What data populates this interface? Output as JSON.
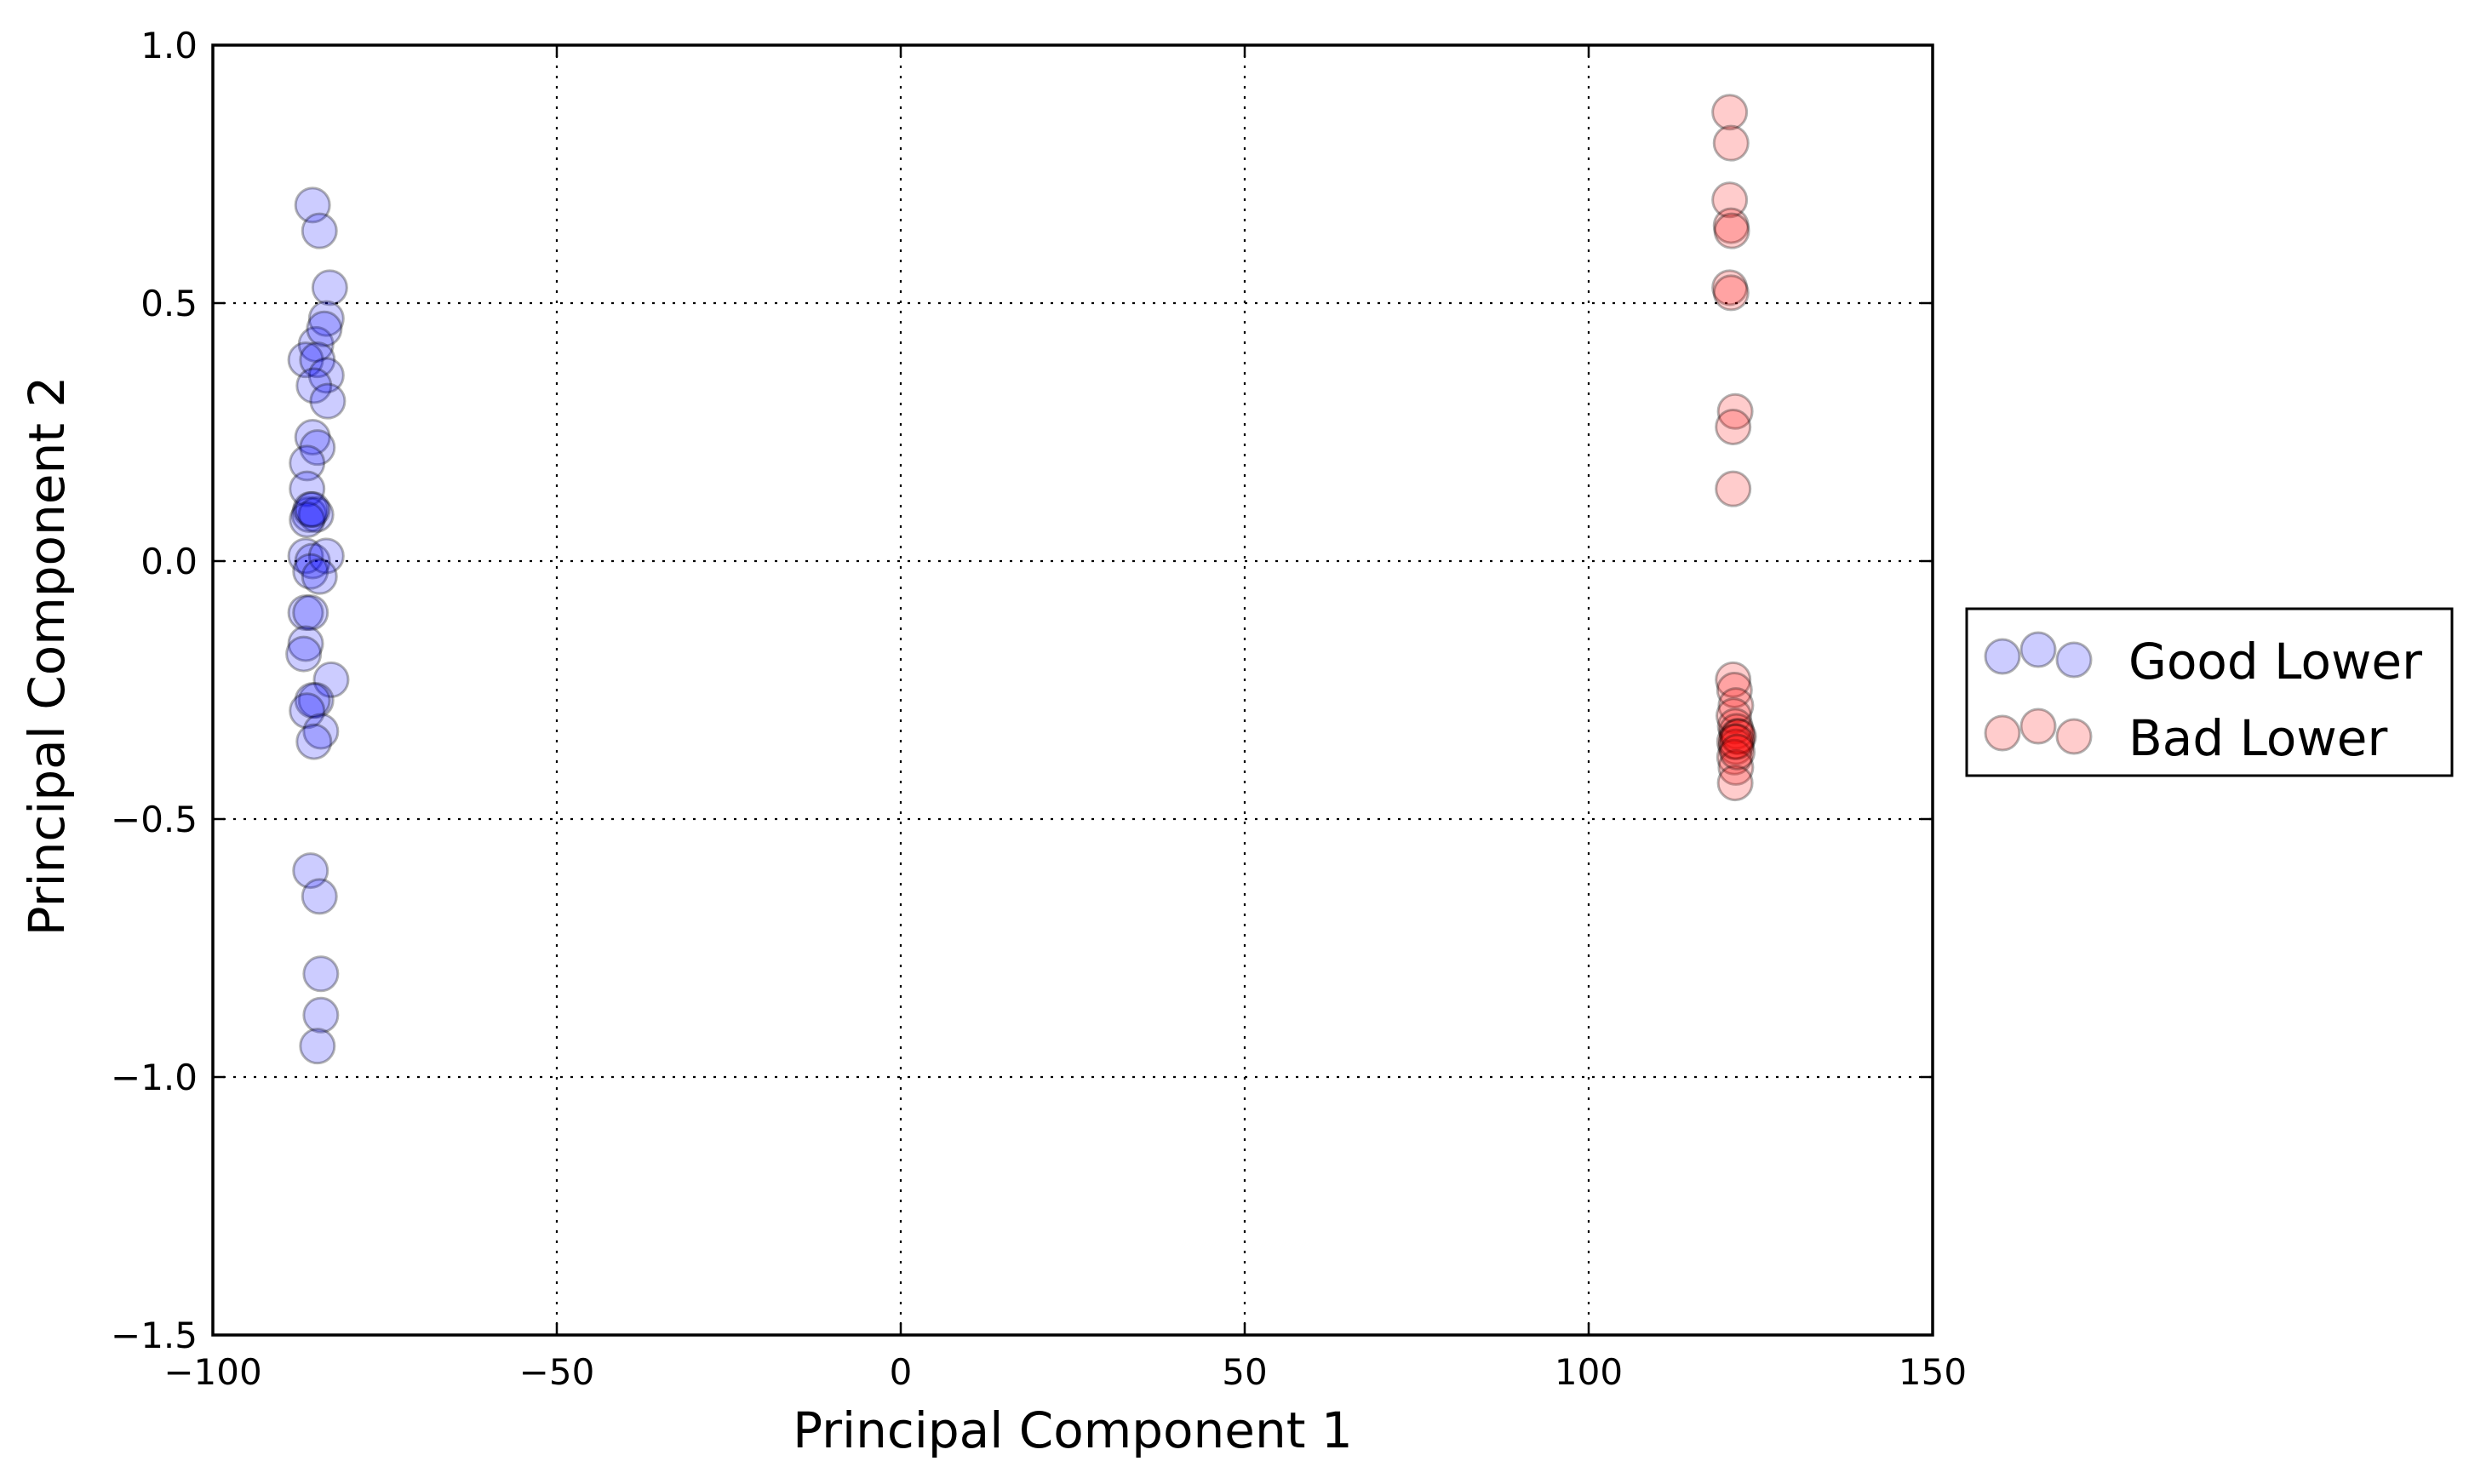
{
  "chart_data": {
    "type": "scatter",
    "title": "",
    "xlabel": "Principal Component 1",
    "ylabel": "Principal Component 2",
    "xlim": [
      -100,
      150
    ],
    "ylim": [
      -1.5,
      1.0
    ],
    "x_ticks": [
      -100,
      -50,
      0,
      50,
      100,
      150
    ],
    "x_tick_labels": [
      "−100",
      "−50",
      "0",
      "50",
      "100",
      "150"
    ],
    "y_ticks": [
      1.0,
      0.5,
      0.0,
      -0.5,
      -1.0,
      -1.5
    ],
    "y_tick_labels": [
      "1.0",
      "0.5",
      "0.0",
      "−0.5",
      "−1.0",
      "−1.5"
    ],
    "grid": true,
    "legend_position": "outside-right",
    "marker_alpha": 0.2,
    "series": [
      {
        "name": "Good Lower",
        "color": "#0000ff",
        "points": [
          [
            -85.5,
            0.69
          ],
          [
            -84.5,
            0.64
          ],
          [
            -83.0,
            0.53
          ],
          [
            -83.5,
            0.47
          ],
          [
            -85.0,
            0.42
          ],
          [
            -83.8,
            0.45
          ],
          [
            -86.5,
            0.39
          ],
          [
            -84.8,
            0.39
          ],
          [
            -83.5,
            0.36
          ],
          [
            -85.3,
            0.34
          ],
          [
            -83.3,
            0.31
          ],
          [
            -85.5,
            0.24
          ],
          [
            -84.8,
            0.22
          ],
          [
            -86.3,
            0.19
          ],
          [
            -86.3,
            0.14
          ],
          [
            -86.0,
            0.09
          ],
          [
            -85.8,
            0.1
          ],
          [
            -85.0,
            0.09
          ],
          [
            -86.3,
            0.08
          ],
          [
            -85.5,
            0.1
          ],
          [
            -86.5,
            0.01
          ],
          [
            -85.5,
            0.0
          ],
          [
            -83.5,
            0.01
          ],
          [
            -85.8,
            -0.02
          ],
          [
            -84.5,
            -0.03
          ],
          [
            -86.5,
            -0.1
          ],
          [
            -85.8,
            -0.1
          ],
          [
            -86.5,
            -0.16
          ],
          [
            -86.8,
            -0.18
          ],
          [
            -82.8,
            -0.23
          ],
          [
            -85.0,
            -0.27
          ],
          [
            -85.5,
            -0.27
          ],
          [
            -86.3,
            -0.29
          ],
          [
            -84.3,
            -0.33
          ],
          [
            -85.3,
            -0.35
          ],
          [
            -85.8,
            -0.6
          ],
          [
            -84.5,
            -0.65
          ],
          [
            -84.3,
            -0.8
          ],
          [
            -84.3,
            -0.88
          ],
          [
            -84.8,
            -0.94
          ]
        ]
      },
      {
        "name": "Bad Lower",
        "color": "#ff0000",
        "points": [
          [
            120.5,
            0.87
          ],
          [
            120.7,
            0.81
          ],
          [
            120.5,
            0.7
          ],
          [
            120.7,
            0.65
          ],
          [
            120.8,
            0.64
          ],
          [
            120.5,
            0.53
          ],
          [
            120.7,
            0.52
          ],
          [
            121.3,
            0.29
          ],
          [
            121.0,
            0.26
          ],
          [
            121.0,
            0.14
          ],
          [
            121.0,
            -0.23
          ],
          [
            121.2,
            -0.25
          ],
          [
            121.4,
            -0.28
          ],
          [
            121.1,
            -0.3
          ],
          [
            121.3,
            -0.32
          ],
          [
            121.5,
            -0.33
          ],
          [
            121.6,
            -0.34
          ],
          [
            121.2,
            -0.35
          ],
          [
            121.4,
            -0.36
          ],
          [
            121.8,
            -0.34
          ],
          [
            121.2,
            -0.38
          ],
          [
            121.4,
            -0.4
          ],
          [
            121.3,
            -0.43
          ],
          [
            121.5,
            -0.35
          ],
          [
            121.6,
            -0.37
          ]
        ]
      }
    ]
  }
}
